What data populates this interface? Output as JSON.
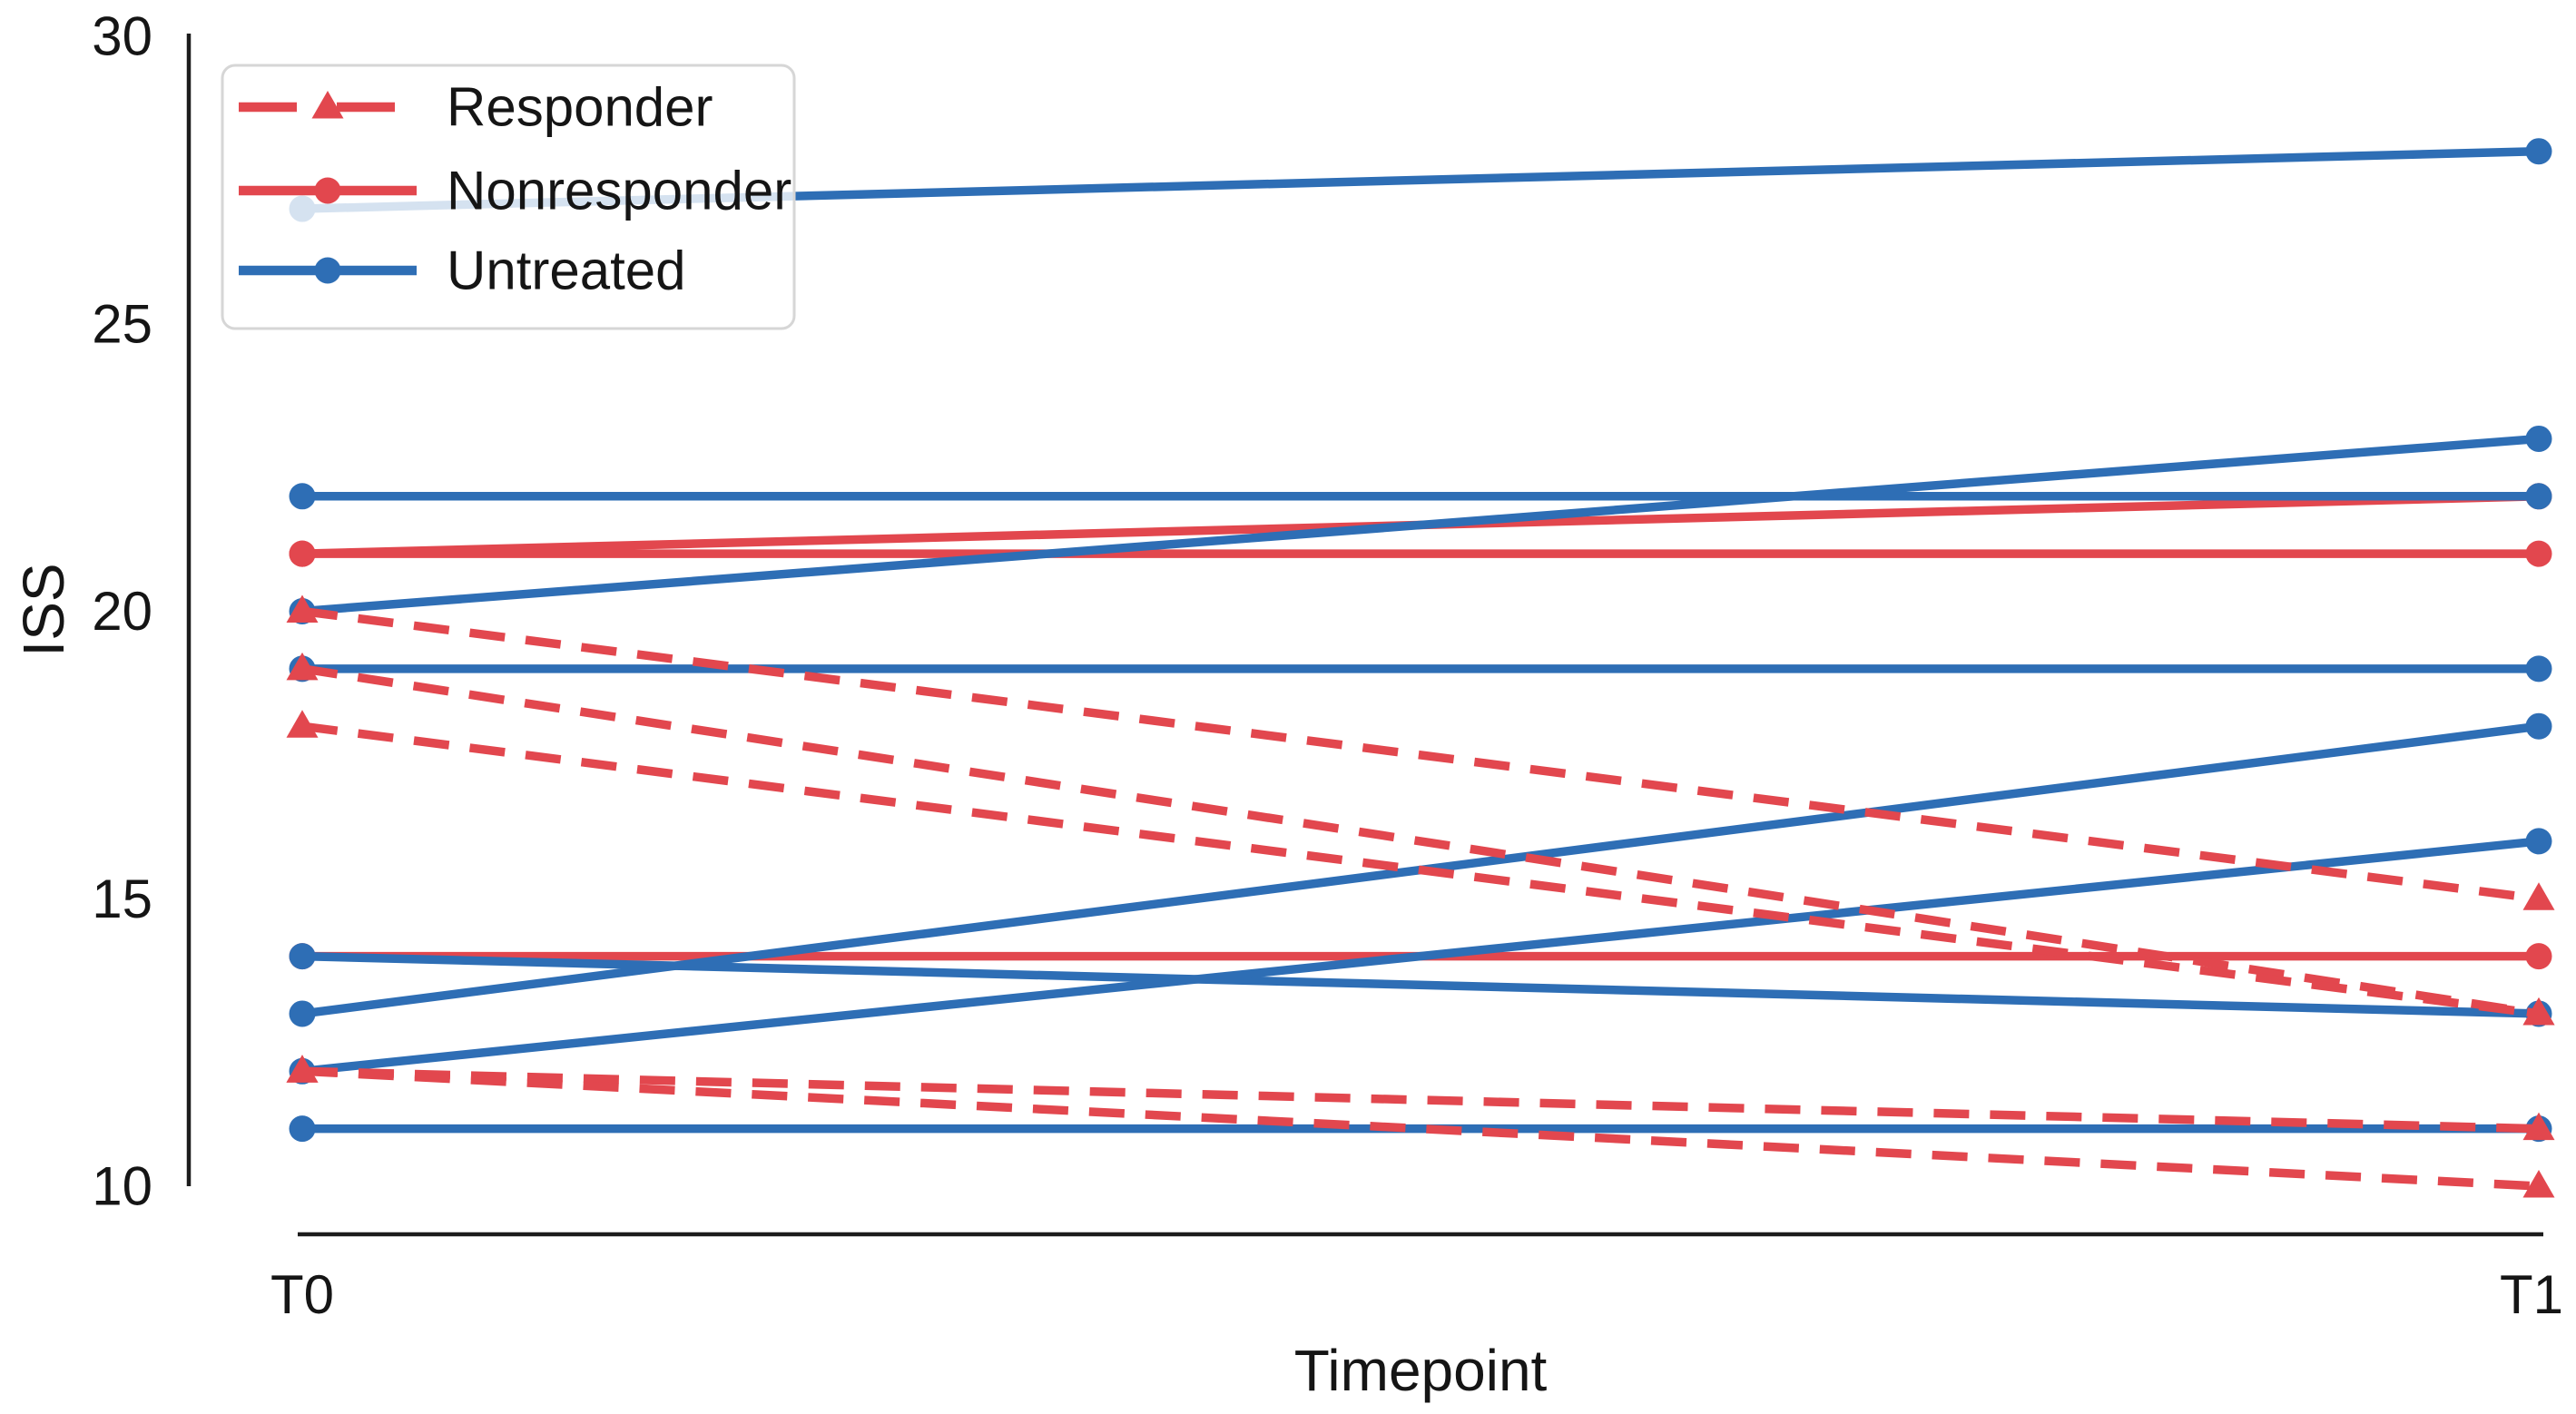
{
  "chart_data": {
    "type": "line",
    "title": "",
    "xlabel": "Timepoint",
    "ylabel": "ISS",
    "x_categories": [
      "T0",
      "T1"
    ],
    "y_ticks": [
      10,
      15,
      20,
      25,
      30
    ],
    "ylim": [
      10,
      30
    ],
    "grid": false,
    "legend_position": "upper-left",
    "colors": {
      "responder": "#e2474e",
      "nonresponder": "#e2474e",
      "untreated": "#2e6eb5",
      "spine": "#1c1c1c",
      "text": "#151515",
      "legend_border": "#d6d6d6",
      "legend_bg_alpha": 0.8
    },
    "legend": [
      {
        "label": "Responder",
        "group": "responder",
        "style": "dashed",
        "marker": "triangle",
        "color": "#e2474e"
      },
      {
        "label": "Nonresponder",
        "group": "nonresponder",
        "style": "solid",
        "marker": "circle",
        "color": "#e2474e"
      },
      {
        "label": "Untreated",
        "group": "untreated",
        "style": "solid",
        "marker": "circle",
        "color": "#2e6eb5"
      }
    ],
    "series": [
      {
        "group": "nonresponder",
        "values": [
          21,
          22
        ]
      },
      {
        "group": "nonresponder",
        "values": [
          21,
          21
        ]
      },
      {
        "group": "nonresponder",
        "values": [
          14,
          14
        ]
      },
      {
        "group": "untreated",
        "values": [
          27,
          28
        ]
      },
      {
        "group": "untreated",
        "values": [
          22,
          22
        ]
      },
      {
        "group": "untreated",
        "values": [
          20,
          23
        ]
      },
      {
        "group": "untreated",
        "values": [
          19,
          19
        ]
      },
      {
        "group": "untreated",
        "values": [
          14,
          13
        ]
      },
      {
        "group": "untreated",
        "values": [
          13,
          18
        ]
      },
      {
        "group": "untreated",
        "values": [
          12,
          16
        ]
      },
      {
        "group": "untreated",
        "values": [
          11,
          11
        ]
      },
      {
        "group": "responder",
        "values": [
          20,
          15
        ]
      },
      {
        "group": "responder",
        "values": [
          19,
          13
        ]
      },
      {
        "group": "responder",
        "values": [
          18,
          13
        ]
      },
      {
        "group": "responder",
        "values": [
          12,
          11
        ]
      },
      {
        "group": "responder",
        "values": [
          12,
          10
        ]
      }
    ]
  }
}
